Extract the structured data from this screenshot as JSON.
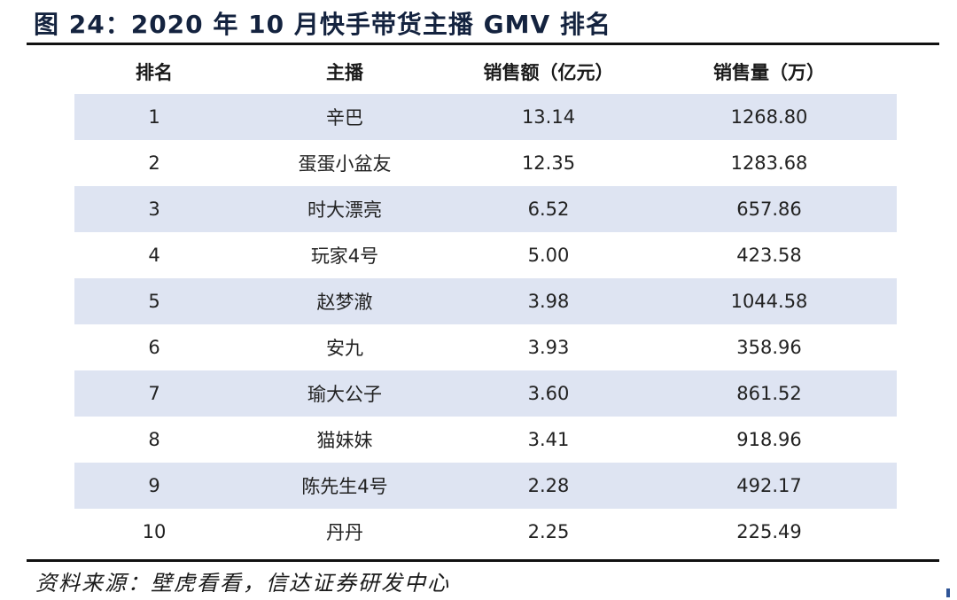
{
  "title": "图 24：2020 年 10 月快手带货主播 GMV 排名",
  "table": {
    "headers": [
      "排名",
      "主播",
      "销售额（亿元）",
      "销售量（万）"
    ],
    "rows": [
      [
        "1",
        "辛巴",
        "13.14",
        "1268.80"
      ],
      [
        "2",
        "蛋蛋小盆友",
        "12.35",
        "1283.68"
      ],
      [
        "3",
        "时大漂亮",
        "6.52",
        "657.86"
      ],
      [
        "4",
        "玩家4号",
        "5.00",
        "423.58"
      ],
      [
        "5",
        "赵梦澈",
        "3.98",
        "1044.58"
      ],
      [
        "6",
        "安九",
        "3.93",
        "358.96"
      ],
      [
        "7",
        "瑜大公子",
        "3.60",
        "861.52"
      ],
      [
        "8",
        "猫妹妹",
        "3.41",
        "918.96"
      ],
      [
        "9",
        "陈先生4号",
        "2.28",
        "492.17"
      ],
      [
        "10",
        "丹丹",
        "2.25",
        "225.49"
      ]
    ]
  },
  "source": "资料来源：壁虎看看，信达证券研发中心",
  "colors": {
    "band": "#dee4f2",
    "title": "#14233f",
    "rule": "#111111",
    "corner_mark": "#2f5597"
  }
}
